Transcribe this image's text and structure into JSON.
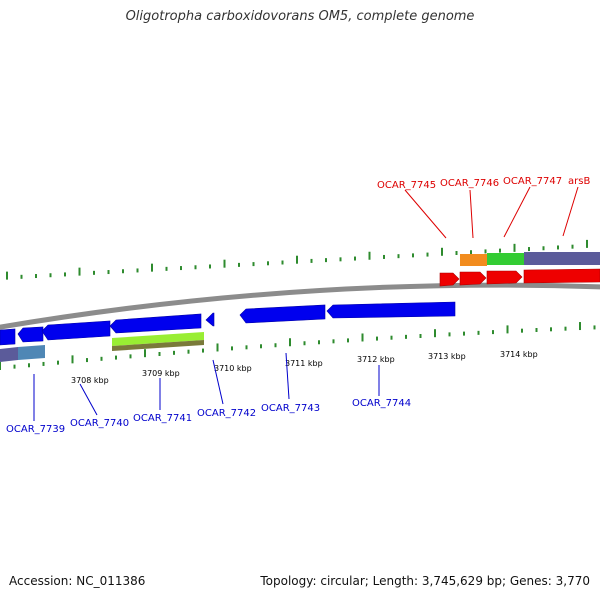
{
  "title": "Oligotropha carboxidovorans OM5, complete genome",
  "footer": {
    "accession": "Accession: NC_011386",
    "topology": "Topology: circular; Length: 3,745,629 bp; Genes: 3,770"
  },
  "colors": {
    "backbone": "#8c8c8c",
    "tick": "#2e8b2e",
    "reverse_gene": "#0000ee",
    "forward_gene": "#ee0000",
    "label_reverse": "#0000cc",
    "label_forward": "#dd0000",
    "feature_orange": "#f28c1e",
    "feature_green": "#33cc33",
    "feature_purple": "#5b5b9a",
    "feature_lime": "#99ee33",
    "feature_olive": "#7a7a3a",
    "feature_steel": "#4f87b5"
  },
  "scale_labels": [
    "3708 kbp",
    "3709 kbp",
    "3710 kbp",
    "3711 kbp",
    "3712 kbp",
    "3713 kbp",
    "3714 kbp"
  ],
  "gene_labels_top": [
    "OCAR_7745",
    "OCAR_7746",
    "OCAR_7747",
    "arsB"
  ],
  "gene_labels_bottom": [
    "OCAR_7739",
    "OCAR_7740",
    "OCAR_7741",
    "OCAR_7742",
    "OCAR_7743",
    "OCAR_7744"
  ]
}
